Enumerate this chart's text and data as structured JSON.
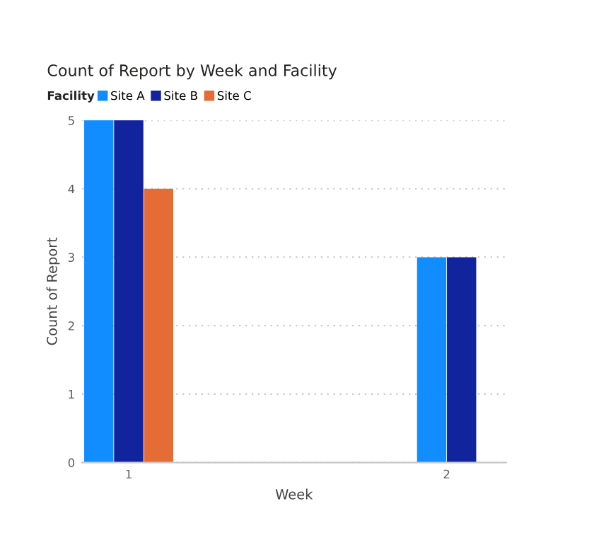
{
  "chart_data": {
    "type": "bar",
    "title": "Count of Report by Week and Facility",
    "legend_title": "Facility",
    "xlabel": "Week",
    "ylabel": "Count of Report",
    "categories": [
      "1",
      "2"
    ],
    "series": [
      {
        "name": "Site A",
        "color": "#118dff",
        "values": [
          5,
          3
        ]
      },
      {
        "name": "Site B",
        "color": "#12239e",
        "values": [
          5,
          3
        ]
      },
      {
        "name": "Site C",
        "color": "#e66c37",
        "values": [
          4,
          null
        ]
      }
    ],
    "ylim": [
      0,
      5
    ],
    "yticks": [
      0,
      1,
      2,
      3,
      4,
      5
    ],
    "grid": "y",
    "legend": "top left"
  }
}
